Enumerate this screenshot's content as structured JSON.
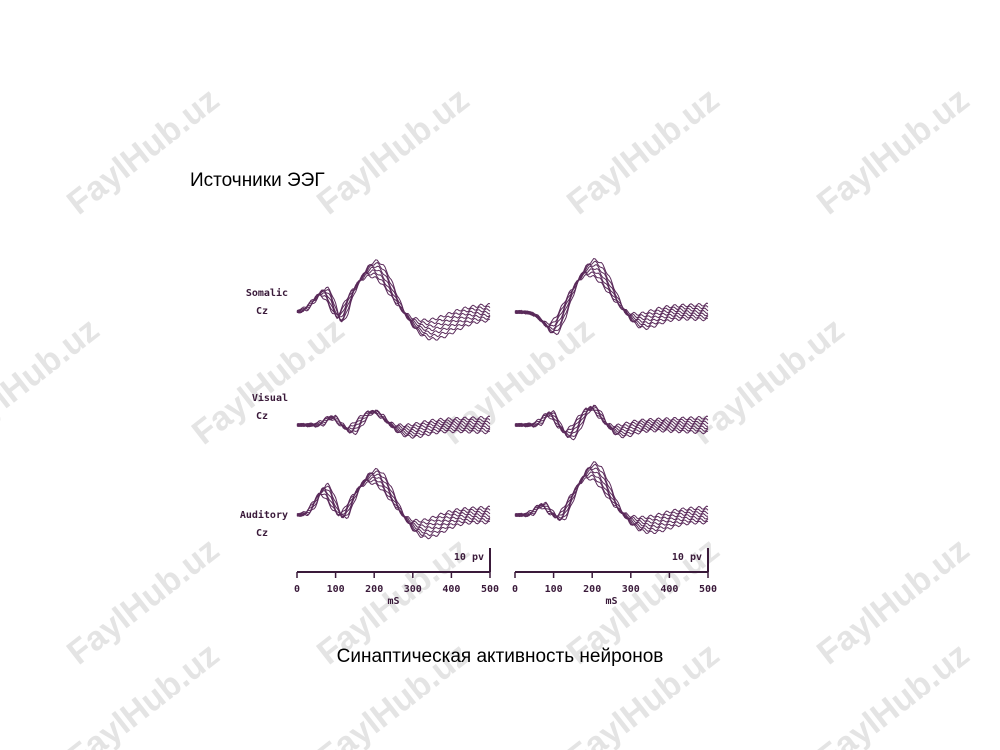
{
  "title": "Источники ЭЭГ",
  "figure": {
    "rows": [
      {
        "label": "Somalic",
        "electrode": "Cz"
      },
      {
        "label": "Visual",
        "electrode": "Cz"
      },
      {
        "label": "Auditory",
        "electrode": "Cz"
      }
    ],
    "panels": [
      {
        "scale": "10 pv",
        "xticks": [
          0,
          100,
          200,
          300,
          400,
          500
        ],
        "xlabel": "mS"
      },
      {
        "scale": "10 pv",
        "xticks": [
          0,
          100,
          200,
          300,
          400,
          500
        ],
        "xlabel": "mS"
      }
    ]
  },
  "caption": "Синаптическая активность нейронов",
  "watermark": "FaylHub.uz"
}
